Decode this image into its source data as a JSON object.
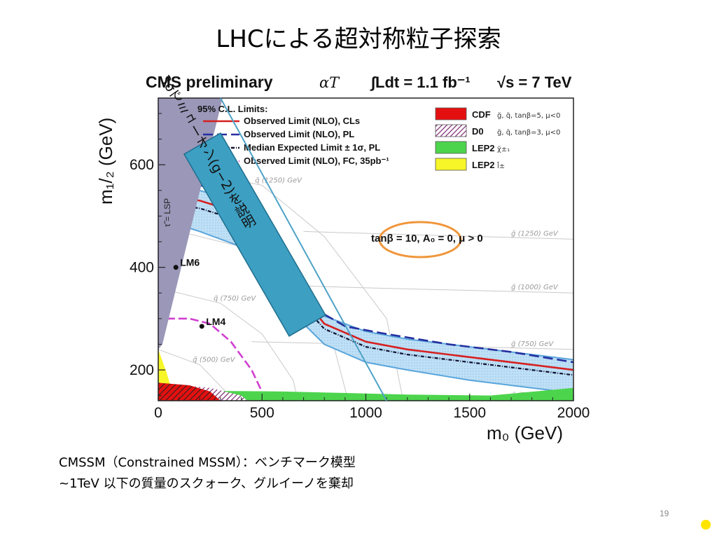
{
  "slide": {
    "title": "LHCによる超対称粒子探索",
    "caption1": "CMSSM（Constrained MSSM）：ベンチマーク模型",
    "caption2": "~1TeV 以下の質量のスクォーク、グルイーノを棄却",
    "page_number": "19"
  },
  "plot": {
    "header_left": "CMS preliminary",
    "header_method": "αT",
    "header_lumi": "∫Ldt = 1.1 fb⁻¹",
    "header_energy": "√s = 7 TeV",
    "lsp_label": "τ̃ = LSP",
    "params_label": "tanβ = 10, A₀ = 0, μ > 0",
    "annotation": "3σでミューオン(g−2)を説明",
    "legend_title": "95% C.L. Limits:",
    "legend_lines": [
      {
        "label": "Observed Limit (NLO), CLs",
        "color": "#d62020",
        "dash": ""
      },
      {
        "label": "Observed Limit (NLO), PL",
        "color": "#2530a0",
        "dash": "14 6"
      },
      {
        "label": "Median Expected Limit ± 1σ, PL",
        "color": "#101030",
        "dash": "5 2 1 2"
      },
      {
        "label": "Observed Limit (NLO), FC, 35pb⁻¹",
        "color": "#d13fd0",
        "dash": "12 5"
      }
    ],
    "legend_boxes": [
      {
        "label": "CDF",
        "detail": "g̃, q̃, tanβ=5, μ<0",
        "color": "#e41010"
      },
      {
        "label": "D0",
        "detail": "g̃, q̃, tanβ=3, μ<0",
        "color": "#7a2870"
      },
      {
        "label": "LEP2",
        "detail": "χ̃±₁",
        "color": "#4dd44d"
      },
      {
        "label": "LEP2",
        "detail": "l̃±",
        "color": "#f6f628"
      }
    ],
    "benchmarks": [
      {
        "label": "LM6",
        "m0": 85,
        "m12": 400
      },
      {
        "label": "LM4",
        "m0": 210,
        "m12": 285
      }
    ],
    "squark_contours": [
      {
        "label": "q̃ (500) GeV",
        "m0": [
          0,
          200,
          320,
          430,
          480
        ],
        "m12": [
          240,
          210,
          160,
          100,
          40
        ]
      },
      {
        "label": "q̃ (750) GeV",
        "m0": [
          0,
          300,
          500,
          650,
          730
        ],
        "m12": [
          360,
          330,
          270,
          180,
          40
        ]
      },
      {
        "label": "q̃ (1000) GeV",
        "m0": [
          0,
          400,
          650,
          850,
          980
        ],
        "m12": [
          480,
          440,
          360,
          240,
          40
        ]
      },
      {
        "label": "q̃ (1250) GeV",
        "m0": [
          0,
          500,
          800,
          1100,
          1230
        ],
        "m12": [
          600,
          560,
          460,
          300,
          40
        ]
      }
    ],
    "gluino_contours": [
      {
        "label": "g̃ (500) GeV",
        "m0": [
          300,
          1000,
          2000
        ],
        "m12": [
          155,
          150,
          140
        ]
      },
      {
        "label": "g̃ (750) GeV",
        "m0": [
          450,
          1000,
          2000
        ],
        "m12": [
          255,
          250,
          240
        ]
      },
      {
        "label": "g̃ (1000) GeV",
        "m0": [
          600,
          1000,
          2000
        ],
        "m12": [
          365,
          360,
          350
        ]
      },
      {
        "label": "g̃ (1250) GeV",
        "m0": [
          700,
          1100,
          2000
        ],
        "m12": [
          470,
          465,
          455
        ]
      }
    ]
  },
  "chart_data": {
    "type": "line",
    "title": "",
    "xlabel": "m₀ (GeV)",
    "ylabel": "m₁/₂ (GeV)",
    "xlim": [
      0,
      2000
    ],
    "ylim": [
      140,
      730
    ],
    "x_ticks": [
      0,
      500,
      1000,
      1500,
      2000
    ],
    "y_ticks": [
      200,
      400,
      600
    ],
    "series": [
      {
        "name": "Observed Limit (NLO), CLs",
        "x": [
          40,
          200,
          400,
          600,
          700,
          800,
          1000,
          1200,
          1500,
          1800,
          2000
        ],
        "y": [
          540,
          530,
          505,
          420,
          340,
          290,
          255,
          240,
          225,
          210,
          200
        ]
      },
      {
        "name": "Observed Limit (NLO), PL",
        "x": [
          40,
          200,
          400,
          550,
          650,
          750,
          900,
          1100,
          1400,
          1700,
          2000
        ],
        "y": [
          565,
          560,
          540,
          480,
          400,
          320,
          285,
          270,
          250,
          235,
          215
        ]
      },
      {
        "name": "Median Expected Limit ± 1σ, PL",
        "x": [
          40,
          200,
          400,
          600,
          700,
          800,
          1000,
          1200,
          1500,
          1800,
          2000
        ],
        "y": [
          525,
          515,
          490,
          405,
          325,
          280,
          245,
          230,
          215,
          200,
          190
        ]
      },
      {
        "name": "Observed Limit (NLO), FC, 35pb⁻¹",
        "x": [
          40,
          150,
          250,
          350,
          450,
          520
        ],
        "y": [
          300,
          300,
          290,
          255,
          200,
          140
        ]
      }
    ],
    "band": {
      "upper_x": [
        40,
        200,
        400,
        600,
        700,
        800,
        1000,
        1200,
        1500,
        1800,
        2000
      ],
      "upper_y": [
        560,
        550,
        525,
        440,
        360,
        305,
        275,
        260,
        245,
        230,
        220
      ],
      "lower_x": [
        40,
        200,
        400,
        500,
        600,
        700,
        800,
        1000,
        1200,
        1500,
        1800,
        2000
      ],
      "lower_y": [
        490,
        470,
        440,
        395,
        340,
        290,
        250,
        215,
        200,
        180,
        165,
        155
      ]
    },
    "excluded_regions": [
      {
        "name": "CDF",
        "color": "#e41010"
      },
      {
        "name": "D0",
        "color": "#7a2870"
      },
      {
        "name": "LEP2 chargino",
        "color": "#4dd44d"
      },
      {
        "name": "LEP2 slepton",
        "color": "#f6f628"
      },
      {
        "name": "stau LSP",
        "color": "#9a97b8"
      }
    ],
    "g2_band": {
      "m0": [
        300,
        1100
      ],
      "m12": [
        730,
        140
      ]
    }
  }
}
